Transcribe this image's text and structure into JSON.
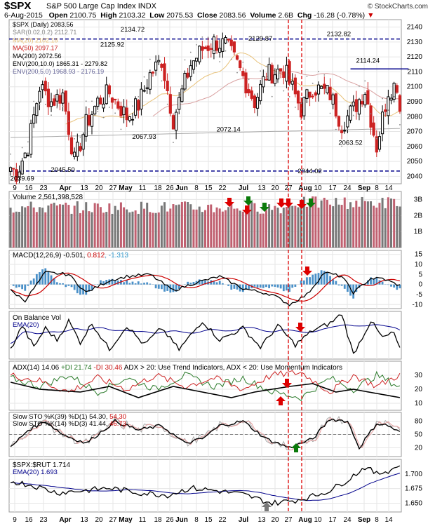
{
  "header": {
    "symbol": "$SPX",
    "name": "S&P 500 Large Cap Index",
    "exchange": "INDX",
    "credit": "© StockCharts.com",
    "date": "6-Aug-2015",
    "open_label": "Open",
    "open": "2100.75",
    "high_label": "High",
    "high": "2103.32",
    "low_label": "Low",
    "low": "2075.53",
    "close_label": "Close",
    "close": "2083.56",
    "volume_label": "Volume",
    "volume": "2.6B",
    "chg_label": "Chg",
    "chg": "-16.28 (-0.78%)"
  },
  "x_axis": {
    "labels": [
      "9",
      "16",
      "23",
      "Apr",
      "13",
      "20",
      "27",
      "May",
      "11",
      "18",
      "26",
      "Jun",
      "8",
      "15",
      "22",
      "Jul",
      "13",
      "20",
      "27",
      "Aug",
      "10",
      "17",
      "24",
      "Sep",
      "8",
      "14"
    ]
  },
  "price_panel": {
    "legend": [
      {
        "text": "$SPX (Daily) 2083.56",
        "color": "#000000"
      },
      {
        "text": "SAR(0.02,0.2) 2112.71",
        "color": "#888888"
      },
      {
        "text": "MA(20) 2102.18",
        "color": "#e8c27a"
      },
      {
        "text": "MA(50) 2097.17",
        "color": "#cc2222"
      },
      {
        "text": "MA(200) 2072.56",
        "color": "#000000"
      },
      {
        "text": "ENV(200,10.0) 1865.31 - 2279.82",
        "color": "#000000"
      },
      {
        "text": "ENV(200,5.0) 1968.93 - 2176.19",
        "color": "#666699"
      }
    ],
    "annotations": [
      "2134.72",
      "2129.87",
      "2132.82",
      "2125.92",
      "2114.24",
      "2067.93",
      "2072.14",
      "2063.52",
      "2039.69",
      "2045.50",
      "2044.02"
    ],
    "y_ticks": [
      "2140",
      "2130",
      "2120",
      "2110",
      "2100",
      "2090",
      "2080",
      "2070",
      "2060",
      "2050",
      "2040"
    ]
  },
  "volume_panel": {
    "legend": "Volume 2,561,398,528",
    "y_ticks": [
      "3B",
      "2B",
      "1B"
    ]
  },
  "macd_panel": {
    "legend_a": "MACD(12,26,9) -0.501, ",
    "legend_b": "0.812",
    "legend_c": ", -1.313",
    "y_ticks": [
      "15",
      "10",
      "5",
      "0",
      "-5",
      "-10"
    ]
  },
  "obv_panel": {
    "title": "On Balance Vol",
    "ema": "EMA(20)"
  },
  "adx_panel": {
    "a": "ADX(14) 14.06 ",
    "b": "+DI 21.74 ",
    "c": "-DI 30.46 ",
    "d": "ADX > 20: Use Trend Indicators, ADX < 20: Use Momentum Indicators",
    "y_ticks": [
      "30",
      "20",
      "10"
    ]
  },
  "sto_panel": {
    "a1": "Slow STO %K(39) %D(1) 54.30, ",
    "a2": "54.30",
    "b1": "Slow STO %K(14) %D(3) 41.44, ",
    "b2": "46.73",
    "y_ticks": [
      "80",
      "50",
      "20"
    ]
  },
  "ratio_panel": {
    "a": "$SPX:$RUT 1.714",
    "b": "EMA(20) 1.693",
    "y_ticks": [
      "1.700",
      "1.675",
      "1.650"
    ]
  },
  "colors": {
    "up": "#000000",
    "down": "#cc2222",
    "grid": "#e6e6e6",
    "blue": "#00008b",
    "arrow_red": "#dd0000",
    "arrow_green": "#0a7a0a",
    "arrow_gray": "#777777",
    "macd_hist": "#4a90c8",
    "vol_bar": "#c06070"
  },
  "chart_data": [
    {
      "type": "candlestick",
      "title": "$SPX (Daily) 2083.56",
      "ylim": [
        2035,
        2145
      ],
      "last_close": 2083.56,
      "key_levels": [
        2131,
        2044
      ],
      "annotated_values": [
        2134.72,
        2129.87,
        2132.82,
        2125.92,
        2114.24,
        2067.93,
        2072.14,
        2063.52,
        2039.69,
        2045.5,
        2044.02
      ]
    },
    {
      "type": "bar",
      "title": "Volume 2,561,398,528",
      "ylim": [
        0,
        3.5
      ],
      "last": 2.56
    },
    {
      "type": "line",
      "title": "MACD(12,26,9)",
      "series": [
        {
          "name": "MACD",
          "last": -0.501
        },
        {
          "name": "Signal",
          "last": 0.812
        },
        {
          "name": "Histogram",
          "last": -1.313
        }
      ],
      "ylim": [
        -12,
        17
      ]
    },
    {
      "type": "line",
      "title": "On Balance Vol",
      "series": [
        {
          "name": "EMA(20)"
        }
      ]
    },
    {
      "type": "line",
      "title": "ADX(14)",
      "series": [
        {
          "name": "ADX",
          "last": 14.06
        },
        {
          "name": "+DI",
          "last": 21.74
        },
        {
          "name": "-DI",
          "last": 30.46
        }
      ],
      "ylim": [
        5,
        40
      ]
    },
    {
      "type": "line",
      "title": "Slow STO",
      "series": [
        {
          "name": "%K(39) %D(1)",
          "last": 54.3
        },
        {
          "name": "%K(14) %D(3)",
          "last": 41.44
        },
        {
          "name": "%D",
          "last": 46.73
        }
      ],
      "ylim": [
        0,
        100
      ]
    },
    {
      "type": "line",
      "title": "$SPX:$RUT 1.714",
      "series": [
        {
          "name": "$SPX:$RUT",
          "last": 1.714
        },
        {
          "name": "EMA(20)",
          "last": 1.693
        }
      ],
      "ylim": [
        1.635,
        1.725
      ]
    }
  ]
}
